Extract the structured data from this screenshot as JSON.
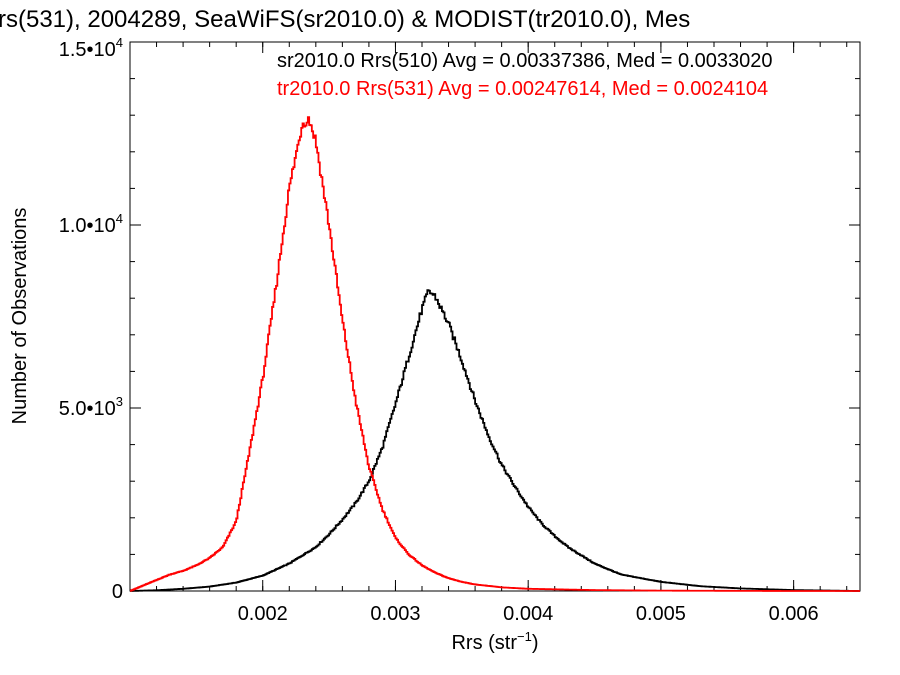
{
  "chart_data": {
    "type": "line",
    "title": "rs(531), 2004289, SeaWiFS(sr2010.0) & MODIST(tr2010.0), Mes",
    "xlabel_main": "Rrs (str",
    "xlabel_sup": "−1",
    "xlabel_close": ")",
    "ylabel": "Number of Observations",
    "xlim": [
      0.001,
      0.0065
    ],
    "ylim": [
      0,
      15000
    ],
    "x_ticks": [
      {
        "value": 0.002,
        "label": "0.002"
      },
      {
        "value": 0.003,
        "label": "0.003"
      },
      {
        "value": 0.004,
        "label": "0.004"
      },
      {
        "value": 0.005,
        "label": "0.005"
      },
      {
        "value": 0.006,
        "label": "0.006"
      }
    ],
    "y_ticks": [
      {
        "value": 0,
        "mant": "0",
        "exp": ""
      },
      {
        "value": 5000,
        "mant": "5.0•10",
        "exp": "3"
      },
      {
        "value": 10000,
        "mant": "1.0•10",
        "exp": "4"
      },
      {
        "value": 15000,
        "mant": "1.5•10",
        "exp": "4"
      }
    ],
    "x_minor_step": 0.0002,
    "y_minor_step": 1000,
    "series": [
      {
        "name": "sr2010.0 Rrs(510) Avg = 0.00337386, Med = 0.0033020",
        "color": "#000000",
        "x": [
          0.001,
          0.0012,
          0.0014,
          0.0016,
          0.0018,
          0.002,
          0.0022,
          0.0024,
          0.0025,
          0.0026,
          0.0027,
          0.0028,
          0.0029,
          0.003,
          0.0031,
          0.0032,
          0.00325,
          0.0033,
          0.0034,
          0.0035,
          0.0036,
          0.0037,
          0.0038,
          0.0039,
          0.004,
          0.0041,
          0.0042,
          0.0043,
          0.0045,
          0.0047,
          0.005,
          0.0053,
          0.0056,
          0.006,
          0.0065
        ],
        "y": [
          0,
          20,
          60,
          120,
          230,
          420,
          750,
          1200,
          1550,
          1950,
          2400,
          3000,
          3900,
          5100,
          6400,
          7700,
          8200,
          8050,
          7300,
          6300,
          5200,
          4250,
          3450,
          2850,
          2300,
          1850,
          1500,
          1200,
          750,
          450,
          250,
          130,
          70,
          25,
          0
        ]
      },
      {
        "name": "tr2010.0 Rrs(531) Avg = 0.00247614, Med = 0.0024104",
        "color": "#ff0000",
        "x": [
          0.001,
          0.0011,
          0.0012,
          0.0013,
          0.0014,
          0.0015,
          0.0016,
          0.0017,
          0.0018,
          0.0019,
          0.002,
          0.0021,
          0.0022,
          0.0023,
          0.00235,
          0.0024,
          0.0025,
          0.0026,
          0.0027,
          0.0028,
          0.0029,
          0.003,
          0.0031,
          0.0032,
          0.0033,
          0.0034,
          0.0035,
          0.0036,
          0.0038,
          0.004,
          0.0045,
          0.005,
          0.006,
          0.0065
        ],
        "y": [
          0,
          150,
          300,
          450,
          550,
          700,
          900,
          1200,
          1900,
          3800,
          5800,
          8300,
          11000,
          12800,
          12900,
          12300,
          10000,
          7400,
          5200,
          3400,
          2250,
          1450,
          1000,
          700,
          500,
          350,
          250,
          180,
          100,
          60,
          25,
          10,
          0,
          0
        ]
      }
    ],
    "grid": false,
    "legend": "top-right"
  }
}
